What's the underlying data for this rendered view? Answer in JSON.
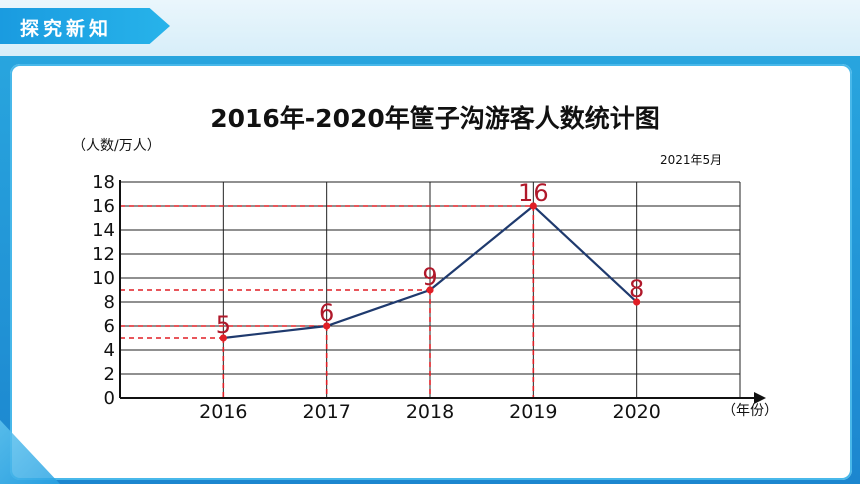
{
  "header": {
    "section_label": "探究新知"
  },
  "chart_data": {
    "type": "line",
    "title": "2016年-2020年筐子沟游客人数统计图",
    "ylabel": "（人数/万人）",
    "xlabel": "（年份）",
    "date_note": "2021年5月",
    "categories": [
      "2016",
      "2017",
      "2018",
      "2019",
      "2020"
    ],
    "values": [
      5,
      6,
      9,
      16,
      8
    ],
    "y_ticks": [
      "0",
      "2",
      "4",
      "6",
      "8",
      "10",
      "12",
      "14",
      "16",
      "18"
    ],
    "ylim": [
      0,
      18
    ],
    "grid": true,
    "line_color": "#1f3a6e",
    "point_color": "#e01e25",
    "label_color": "#b0182a",
    "guide_color": "#e01e25"
  }
}
